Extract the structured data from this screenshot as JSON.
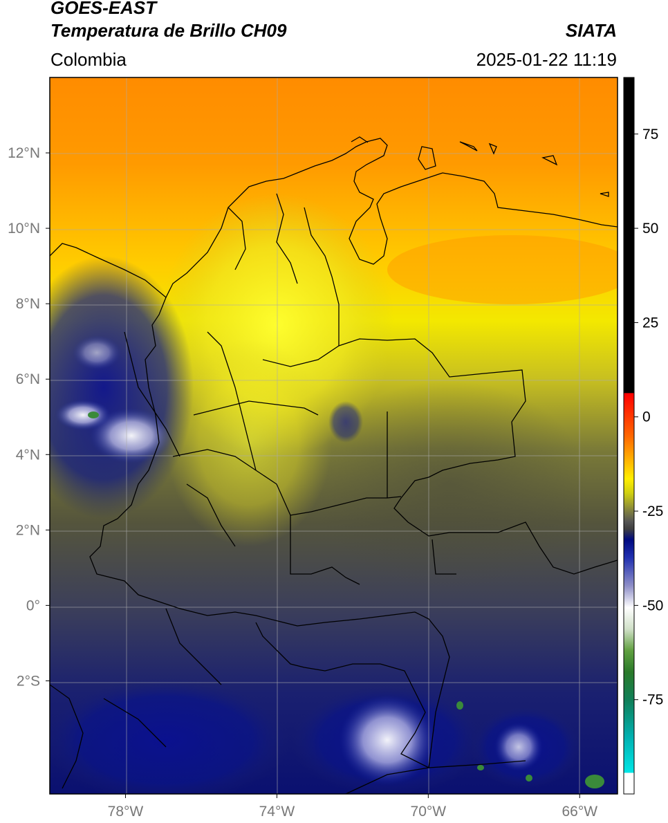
{
  "header": {
    "line1": "GOES-EAST",
    "line2": "Temperatura de Brillo CH09",
    "region": "Colombia",
    "agency": "SIATA",
    "datetime": "2025-01-22 11:19"
  },
  "axes": {
    "lon_ticks": [
      {
        "value": -78,
        "label": "78°W"
      },
      {
        "value": -74,
        "label": "74°W"
      },
      {
        "value": -70,
        "label": "70°W"
      },
      {
        "value": -66,
        "label": "66°W"
      }
    ],
    "lat_ticks": [
      {
        "value": 12,
        "label": "12°N"
      },
      {
        "value": 10,
        "label": "10°N"
      },
      {
        "value": 8,
        "label": "8°N"
      },
      {
        "value": 6,
        "label": "6°N"
      },
      {
        "value": 4,
        "label": "4°N"
      },
      {
        "value": 2,
        "label": "2°N"
      },
      {
        "value": 0,
        "label": "0°"
      },
      {
        "value": -2,
        "label": "2°S"
      }
    ],
    "lon_range": [
      -80,
      -65
    ],
    "lat_range": [
      -5,
      14
    ]
  },
  "colorbar": {
    "range": [
      -100,
      90
    ],
    "ticks": [
      {
        "value": 75,
        "label": "75"
      },
      {
        "value": 50,
        "label": "50"
      },
      {
        "value": 25,
        "label": "25"
      },
      {
        "value": 0,
        "label": "0"
      },
      {
        "value": -25,
        "label": "-25"
      },
      {
        "value": -50,
        "label": "-50"
      },
      {
        "value": -75,
        "label": "-75"
      }
    ]
  },
  "colors": {
    "warm_orange": "#ff8c00",
    "yellow": "#ffee00",
    "olive": "#58583a",
    "navy": "#0a1482",
    "white": "#ffffff",
    "border": "#000000"
  }
}
